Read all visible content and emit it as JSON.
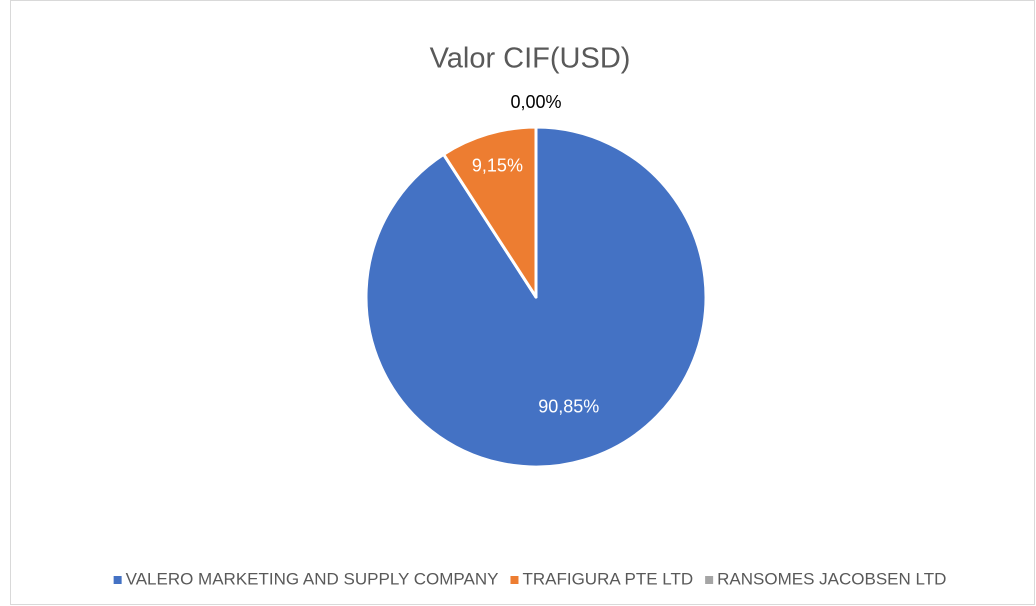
{
  "chart_data": {
    "type": "pie",
    "title": "Valor CIF(USD)",
    "categories": [
      "VALERO MARKETING AND SUPPLY COMPANY",
      "TRAFIGURA PTE LTD",
      "RANSOMES JACOBSEN LTD"
    ],
    "values": [
      90.85,
      9.15,
      0
    ],
    "value_labels": [
      "90,85%",
      "9,15%",
      "0,00%"
    ],
    "colors": [
      "#4472c4",
      "#ed7d31",
      "#a5a5a5"
    ],
    "legend": "bottom"
  }
}
